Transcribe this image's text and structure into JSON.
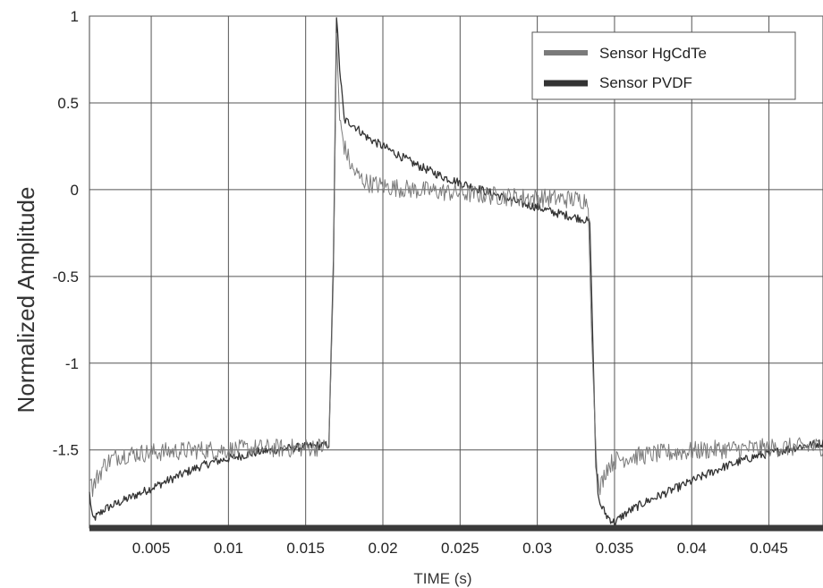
{
  "chart_data": {
    "type": "line",
    "title": "",
    "xlabel": "TIME  (s)",
    "ylabel": "Normalized Amplitude",
    "xlim": [
      0.001,
      0.0485
    ],
    "ylim": [
      -1.95,
      1.0
    ],
    "x_ticks": [
      0.005,
      0.01,
      0.015,
      0.02,
      0.025,
      0.03,
      0.035,
      0.04,
      0.045
    ],
    "x_tick_labels": [
      "0.005",
      "0.01",
      "0.015",
      "0.02",
      "0.025",
      "0.03",
      "0.035",
      "0.04",
      "0.045"
    ],
    "y_ticks": [
      1,
      0.5,
      0,
      -0.5,
      -1,
      -1.5
    ],
    "y_tick_labels": [
      "1",
      "0.5",
      "0",
      "-0.5",
      "-1",
      "-1.5"
    ],
    "grid": true,
    "legend_position": "top-right",
    "series": [
      {
        "name": "Sensor   HgCdTe",
        "color": "#7a7a7a",
        "points": [
          [
            0.001,
            -1.62
          ],
          [
            0.0012,
            -1.72
          ],
          [
            0.0015,
            -1.66
          ],
          [
            0.002,
            -1.58
          ],
          [
            0.0025,
            -1.55
          ],
          [
            0.003,
            -1.53
          ],
          [
            0.004,
            -1.52
          ],
          [
            0.006,
            -1.51
          ],
          [
            0.008,
            -1.5
          ],
          [
            0.01,
            -1.5
          ],
          [
            0.012,
            -1.49
          ],
          [
            0.014,
            -1.49
          ],
          [
            0.0165,
            -1.48
          ],
          [
            0.0168,
            -0.5
          ],
          [
            0.017,
            0.9
          ],
          [
            0.0172,
            0.4
          ],
          [
            0.0175,
            0.25
          ],
          [
            0.018,
            0.12
          ],
          [
            0.0185,
            0.07
          ],
          [
            0.019,
            0.04
          ],
          [
            0.02,
            0.02
          ],
          [
            0.022,
            0.0
          ],
          [
            0.025,
            -0.02
          ],
          [
            0.028,
            -0.04
          ],
          [
            0.031,
            -0.05
          ],
          [
            0.0333,
            -0.06
          ],
          [
            0.0335,
            -0.8
          ],
          [
            0.0338,
            -1.5
          ],
          [
            0.034,
            -1.75
          ],
          [
            0.0342,
            -1.68
          ],
          [
            0.0345,
            -1.6
          ],
          [
            0.035,
            -1.56
          ],
          [
            0.036,
            -1.54
          ],
          [
            0.038,
            -1.52
          ],
          [
            0.041,
            -1.5
          ],
          [
            0.044,
            -1.49
          ],
          [
            0.0485,
            -1.48
          ]
        ]
      },
      {
        "name": "Sensor   PVDF",
        "color": "#333333",
        "points": [
          [
            0.001,
            -1.75
          ],
          [
            0.0012,
            -1.9
          ],
          [
            0.0015,
            -1.88
          ],
          [
            0.002,
            -1.84
          ],
          [
            0.003,
            -1.8
          ],
          [
            0.004,
            -1.76
          ],
          [
            0.005,
            -1.72
          ],
          [
            0.006,
            -1.68
          ],
          [
            0.007,
            -1.64
          ],
          [
            0.008,
            -1.6
          ],
          [
            0.009,
            -1.57
          ],
          [
            0.01,
            -1.55
          ],
          [
            0.011,
            -1.53
          ],
          [
            0.012,
            -1.51
          ],
          [
            0.013,
            -1.5
          ],
          [
            0.014,
            -1.49
          ],
          [
            0.015,
            -1.48
          ],
          [
            0.0165,
            -1.47
          ],
          [
            0.0168,
            -0.4
          ],
          [
            0.017,
            0.99
          ],
          [
            0.0172,
            0.7
          ],
          [
            0.0175,
            0.4
          ],
          [
            0.018,
            0.38
          ],
          [
            0.0185,
            0.34
          ],
          [
            0.019,
            0.3
          ],
          [
            0.02,
            0.25
          ],
          [
            0.021,
            0.2
          ],
          [
            0.022,
            0.15
          ],
          [
            0.023,
            0.11
          ],
          [
            0.024,
            0.07
          ],
          [
            0.025,
            0.04
          ],
          [
            0.026,
            0.01
          ],
          [
            0.027,
            -0.02
          ],
          [
            0.028,
            -0.05
          ],
          [
            0.029,
            -0.08
          ],
          [
            0.03,
            -0.1
          ],
          [
            0.031,
            -0.13
          ],
          [
            0.032,
            -0.15
          ],
          [
            0.033,
            -0.17
          ],
          [
            0.0334,
            -0.19
          ],
          [
            0.0336,
            -0.9
          ],
          [
            0.0338,
            -1.6
          ],
          [
            0.034,
            -1.8
          ],
          [
            0.0345,
            -1.88
          ],
          [
            0.035,
            -1.92
          ],
          [
            0.0355,
            -1.88
          ],
          [
            0.036,
            -1.85
          ],
          [
            0.037,
            -1.8
          ],
          [
            0.038,
            -1.76
          ],
          [
            0.039,
            -1.72
          ],
          [
            0.04,
            -1.68
          ],
          [
            0.041,
            -1.64
          ],
          [
            0.042,
            -1.6
          ],
          [
            0.043,
            -1.57
          ],
          [
            0.044,
            -1.54
          ],
          [
            0.045,
            -1.52
          ],
          [
            0.046,
            -1.5
          ],
          [
            0.047,
            -1.48
          ],
          [
            0.0485,
            -1.46
          ]
        ]
      }
    ]
  }
}
